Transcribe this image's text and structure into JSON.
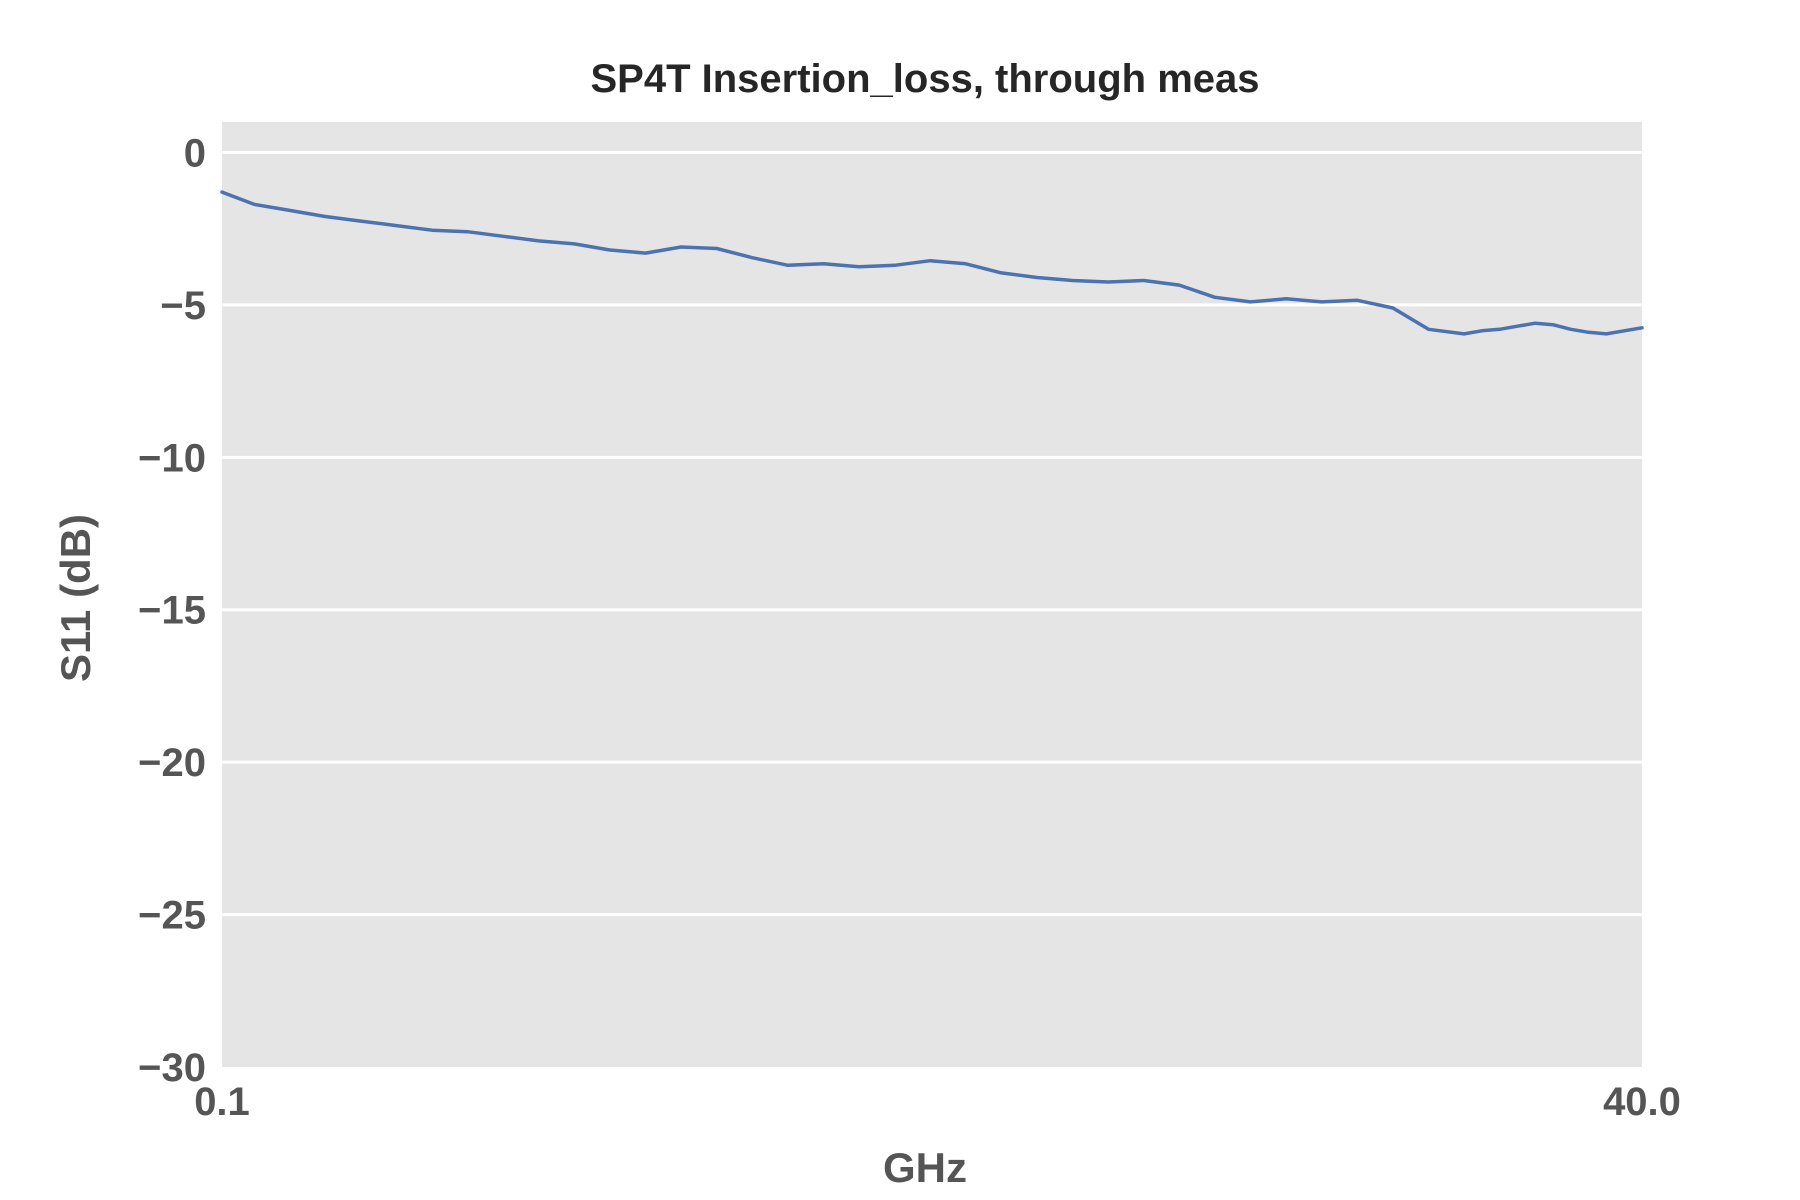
{
  "chart_data": {
    "type": "line",
    "title": "SP4T Insertion_loss, through meas",
    "xlabel": "GHz",
    "ylabel": "S11 (dB)",
    "xlim": [
      0.1,
      40.0
    ],
    "ylim": [
      -30,
      1
    ],
    "x_tick_labels": [
      "0.1",
      "40.0"
    ],
    "y_ticks": [
      0,
      -5,
      -10,
      -15,
      -20,
      -25,
      -30
    ],
    "y_tick_labels": [
      "0",
      "−5",
      "−10",
      "−15",
      "−20",
      "−25",
      "−30"
    ],
    "grid": true,
    "series": [
      {
        "name": "Insertion loss",
        "color": "#4c72b0",
        "x": [
          0.1,
          1.0,
          2.0,
          3.0,
          4.0,
          5.0,
          6.0,
          7.0,
          8.0,
          9.0,
          10.0,
          11.0,
          12.0,
          13.0,
          14.0,
          15.0,
          16.0,
          17.0,
          18.0,
          19.0,
          20.0,
          21.0,
          22.0,
          23.0,
          24.0,
          25.0,
          26.0,
          27.0,
          28.0,
          29.0,
          30.0,
          31.0,
          32.0,
          33.0,
          34.0,
          35.0,
          35.5,
          36.0,
          36.5,
          37.0,
          37.5,
          38.0,
          38.5,
          39.0,
          39.5,
          40.0
        ],
        "y": [
          -1.3,
          -1.7,
          -1.9,
          -2.1,
          -2.25,
          -2.4,
          -2.55,
          -2.6,
          -2.75,
          -2.9,
          -3.0,
          -3.2,
          -3.3,
          -3.1,
          -3.15,
          -3.45,
          -3.7,
          -3.65,
          -3.75,
          -3.7,
          -3.55,
          -3.65,
          -3.95,
          -4.1,
          -4.2,
          -4.25,
          -4.2,
          -4.35,
          -4.75,
          -4.9,
          -4.8,
          -4.9,
          -4.85,
          -5.1,
          -5.8,
          -5.95,
          -5.85,
          -5.8,
          -5.7,
          -5.6,
          -5.65,
          -5.8,
          -5.9,
          -5.95,
          -5.85,
          -5.75
        ]
      }
    ]
  }
}
